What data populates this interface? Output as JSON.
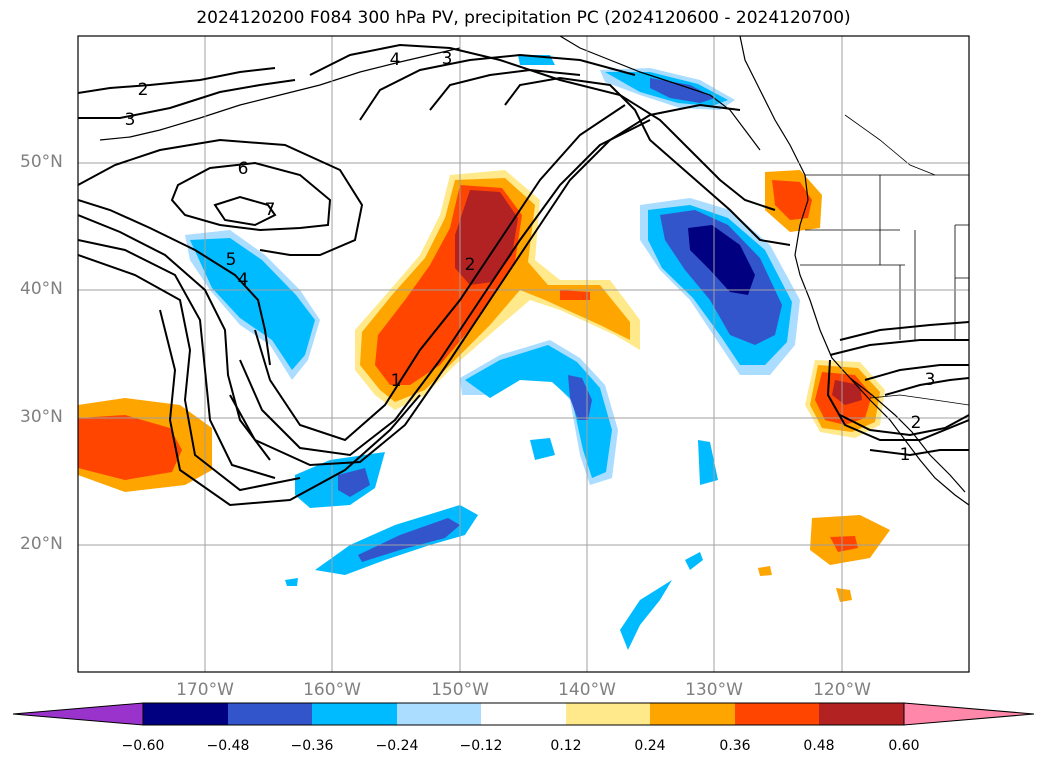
{
  "title": "2024120200 F084 300 hPa PV, precipitation PC (2024120600 - 2024120700)",
  "map": {
    "extent": {
      "lon_min": -180,
      "lon_max": -110,
      "lat_min": 10,
      "lat_max": 60
    },
    "lat_labels": [
      "50°N",
      "40°N",
      "30°N",
      "20°N"
    ],
    "lon_labels": [
      "170°W",
      "160°W",
      "150°W",
      "140°W",
      "130°W",
      "120°W"
    ],
    "gridlines": true,
    "pv_contour_labels": [
      "2",
      "3",
      "4",
      "3",
      "6",
      "7",
      "5",
      "4",
      "2",
      "1",
      "2",
      "1",
      "3"
    ],
    "pv_contour_color": "#000000"
  },
  "colorbar": {
    "ticks": [
      "−0.60",
      "−0.48",
      "−0.36",
      "−0.24",
      "−0.12",
      "0.12",
      "0.24",
      "0.36",
      "0.48",
      "0.60"
    ],
    "colors": [
      "#9933cc",
      "#000080",
      "#3355cc",
      "#00bbff",
      "#aaddff",
      "#ffffff",
      "#ffe98a",
      "#ffa500",
      "#ff4500",
      "#b22222",
      "#ff88aa"
    ],
    "extend": "both"
  }
}
